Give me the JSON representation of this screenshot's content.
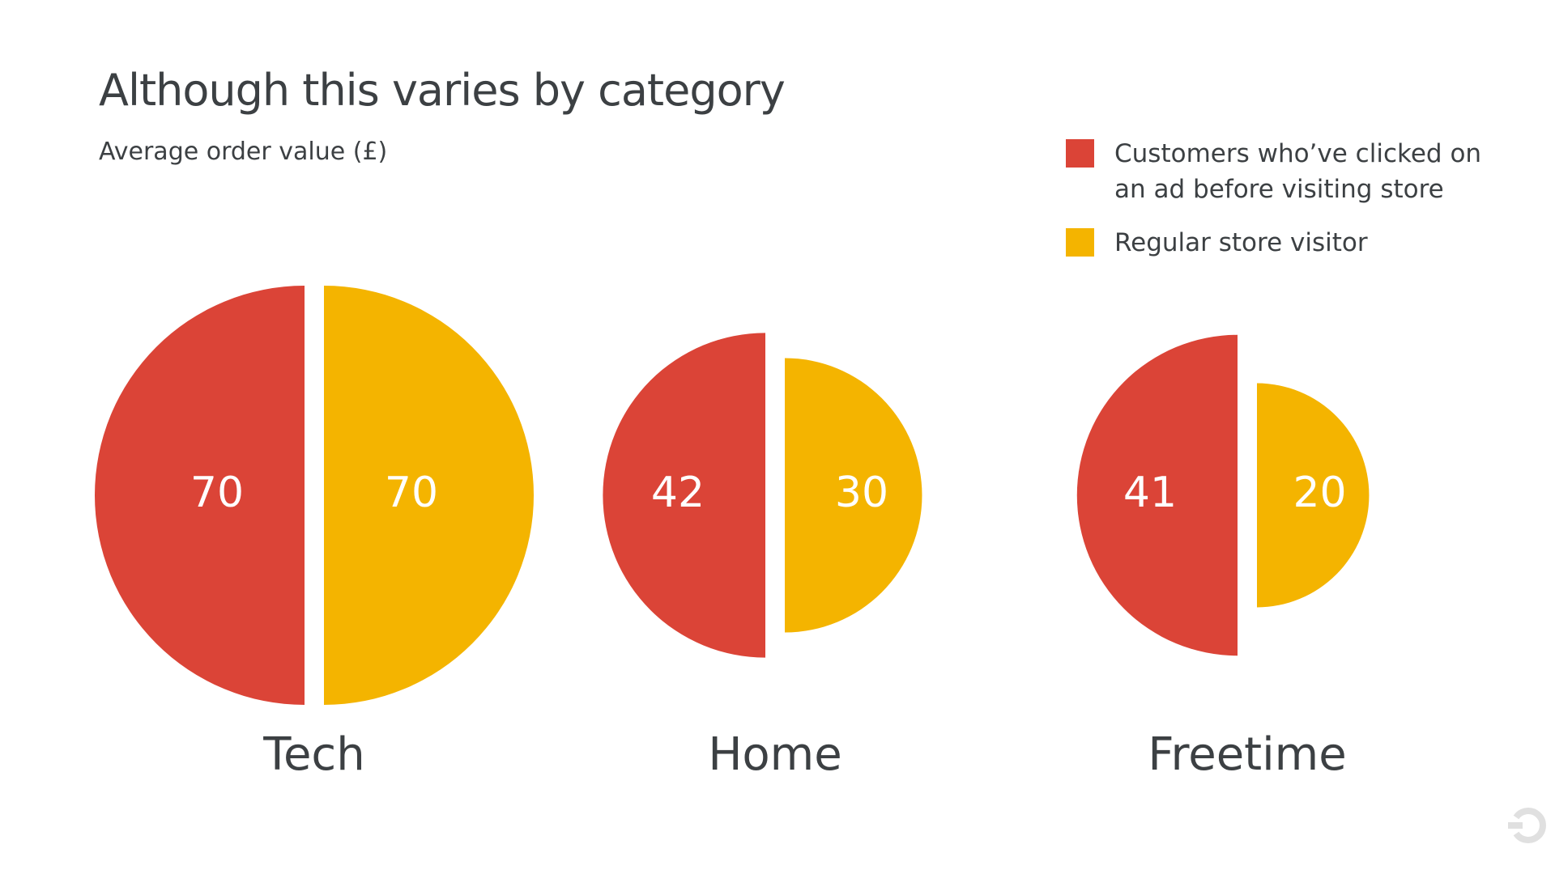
{
  "chart_data": {
    "type": "half-circle",
    "title": "Although this varies by category",
    "subtitle": "Average order value (£)",
    "categories": [
      "Tech",
      "Home",
      "Freetime"
    ],
    "series": [
      {
        "name": "Customers who’ve clicked on an ad before visiting store",
        "color": "#db4437",
        "values": [
          70,
          42,
          41
        ]
      },
      {
        "name": "Regular store visitor",
        "color": "#f4b400",
        "values": [
          70,
          30,
          20
        ]
      }
    ]
  }
}
